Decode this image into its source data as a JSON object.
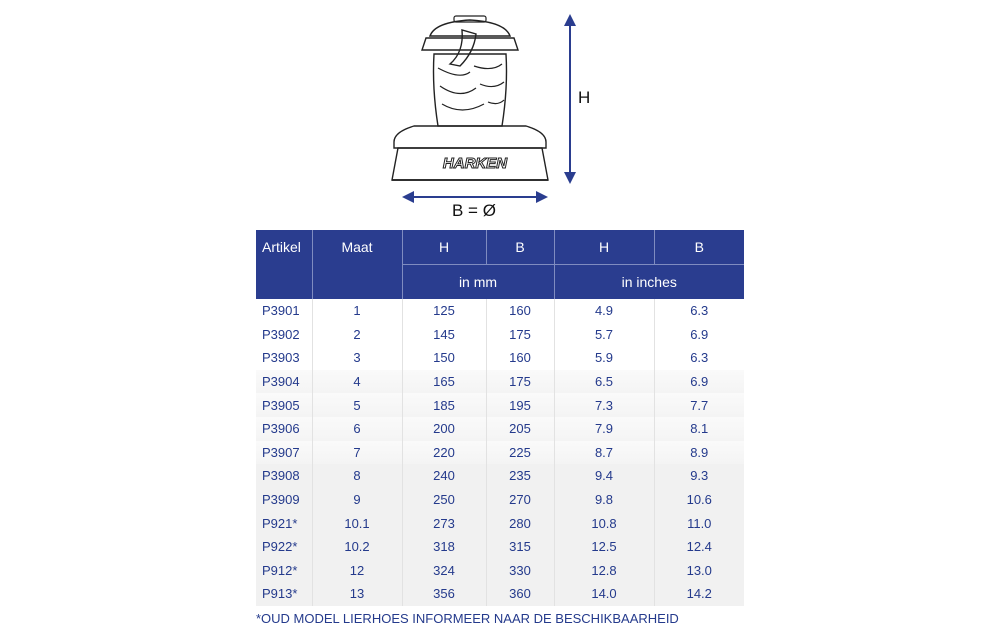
{
  "diagram": {
    "brand": "HARKEN",
    "height_label": "H",
    "base_label": "B = Ø"
  },
  "table": {
    "headers": [
      "Artikel",
      "Maat",
      "H",
      "B",
      "H",
      "B"
    ],
    "units_mm": "in mm",
    "units_inches": "in inches",
    "rows": [
      [
        "P3901",
        "1",
        "125",
        "160",
        "4.9",
        "6.3"
      ],
      [
        "P3902",
        "2",
        "145",
        "175",
        "5.7",
        "6.9"
      ],
      [
        "P3903",
        "3",
        "150",
        "160",
        "5.9",
        "6.3"
      ],
      [
        "P3904",
        "4",
        "165",
        "175",
        "6.5",
        "6.9"
      ],
      [
        "P3905",
        "5",
        "185",
        "195",
        "7.3",
        "7.7"
      ],
      [
        "P3906",
        "6",
        "200",
        "205",
        "7.9",
        "8.1"
      ],
      [
        "P3907",
        "7",
        "220",
        "225",
        "8.7",
        "8.9"
      ],
      [
        "P3908",
        "8",
        "240",
        "235",
        "9.4",
        "9.3"
      ],
      [
        "P3909",
        "9",
        "250",
        "270",
        "9.8",
        "10.6"
      ],
      [
        "P921*",
        "10.1",
        "273",
        "280",
        "10.8",
        "11.0"
      ],
      [
        "P922*",
        "10.2",
        "318",
        "315",
        "12.5",
        "12.4"
      ],
      [
        "P912*",
        "12",
        "324",
        "330",
        "12.8",
        "13.0"
      ],
      [
        "P913*",
        "13",
        "356",
        "360",
        "14.0",
        "14.2"
      ]
    ]
  },
  "footnote": "*OUD MODEL LIERHOES INFORMEER NAAR DE BESCHIKBAARHEID",
  "colors": {
    "header_bg": "#2a3d8f",
    "text": "#243a8c",
    "arrow": "#2a3d8f"
  }
}
